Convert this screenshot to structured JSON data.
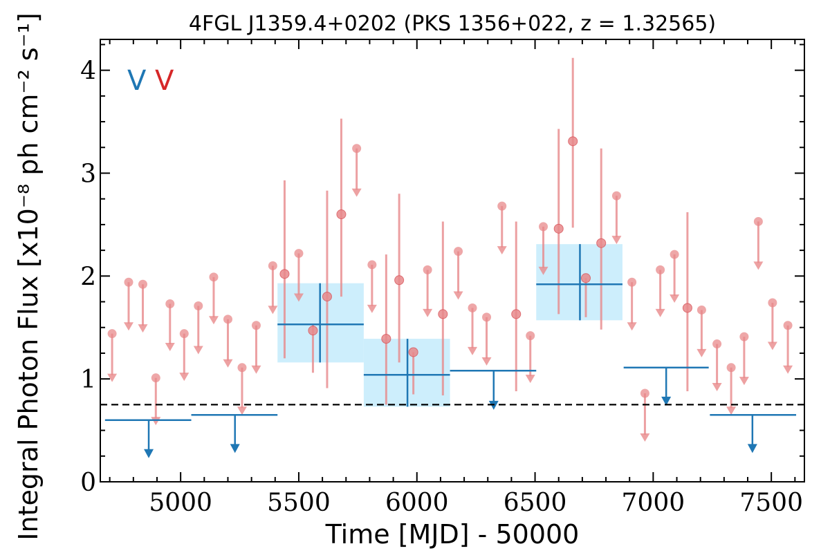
{
  "chart_data": {
    "type": "scatter",
    "title": "4FGL J1359.4+0202 (PKS 1356+022, z = 1.32565)",
    "xlabel": "Time [MJD] - 50000",
    "ylabel": "Integral Photon Flux [x10⁻⁸ ph cm⁻² s⁻¹]",
    "xlim": [
      4660,
      7640
    ],
    "ylim": [
      0,
      4.3
    ],
    "xticks": [
      5000,
      5500,
      6000,
      6500,
      7000,
      7500
    ],
    "yticks": [
      0,
      1,
      2,
      3,
      4
    ],
    "xtick_labels": [
      "5000",
      "5500",
      "6000",
      "6500",
      "7000",
      "7500"
    ],
    "ytick_labels": [
      "0",
      "1",
      "2",
      "3",
      "4"
    ],
    "grid": false,
    "reference_line": {
      "y": 0.75,
      "style": "dashed",
      "color": "#000000"
    },
    "legend": {
      "placement": "top-left",
      "entries": [
        {
          "label": "V",
          "color": "#1f77b4"
        },
        {
          "label": "V",
          "color": "#d62728"
        }
      ]
    },
    "series": [
      {
        "color": "#1f77b4",
        "band_color": "#cdeefc",
        "detections": [
          {
            "x": 5590,
            "x_lo": 5410,
            "x_hi": 5775,
            "y": 1.53,
            "y_lo": 1.16,
            "y_hi": 1.93
          },
          {
            "x": 5960,
            "x_lo": 5775,
            "x_hi": 6140,
            "y": 1.04,
            "y_lo": 0.73,
            "y_hi": 1.39
          },
          {
            "x": 6690,
            "x_lo": 6505,
            "x_hi": 6870,
            "y": 1.92,
            "y_lo": 1.57,
            "y_hi": 2.31
          }
        ],
        "upper_limits": [
          {
            "x": 4865,
            "x_lo": 4680,
            "x_hi": 5045,
            "y": 0.6,
            "arrow_to": 0.23
          },
          {
            "x": 5230,
            "x_lo": 5045,
            "x_hi": 5410,
            "y": 0.65,
            "arrow_to": 0.28
          },
          {
            "x": 6325,
            "x_lo": 6140,
            "x_hi": 6505,
            "y": 1.08,
            "arrow_to": 0.7
          },
          {
            "x": 7055,
            "x_lo": 6875,
            "x_hi": 7235,
            "y": 1.11,
            "arrow_to": 0.74
          },
          {
            "x": 7420,
            "x_lo": 7240,
            "x_hi": 7605,
            "y": 0.65,
            "arrow_to": 0.28
          }
        ]
      },
      {
        "color": "#e8898b",
        "detections": [
          {
            "x": 5440,
            "y": 2.02,
            "y_lo": 1.2,
            "y_hi": 2.93
          },
          {
            "x": 5560,
            "y": 1.47,
            "y_lo": 1.06,
            "y_hi": 1.53
          },
          {
            "x": 5620,
            "y": 1.8,
            "y_lo": 0.91,
            "y_hi": 2.83
          },
          {
            "x": 5680,
            "y": 2.6,
            "y_lo": 1.8,
            "y_hi": 3.53
          },
          {
            "x": 5870,
            "y": 1.39,
            "y_lo": 0.75,
            "y_hi": 2.21
          },
          {
            "x": 5925,
            "y": 1.96,
            "y_lo": 1.16,
            "y_hi": 2.8
          },
          {
            "x": 5985,
            "y": 1.26,
            "y_lo": 0.85,
            "y_hi": 1.26
          },
          {
            "x": 6110,
            "y": 1.63,
            "y_lo": 0.84,
            "y_hi": 2.53
          },
          {
            "x": 6420,
            "y": 1.63,
            "y_lo": 0.88,
            "y_hi": 2.53
          },
          {
            "x": 6600,
            "y": 2.46,
            "y_lo": 1.63,
            "y_hi": 3.43
          },
          {
            "x": 6660,
            "y": 3.31,
            "y_lo": 2.47,
            "y_hi": 4.12
          },
          {
            "x": 6715,
            "y": 1.98,
            "y_lo": 1.6,
            "y_hi": 1.98
          },
          {
            "x": 6780,
            "y": 2.32,
            "y_lo": 1.48,
            "y_hi": 3.24
          },
          {
            "x": 7145,
            "y": 1.69,
            "y_lo": 0.88,
            "y_hi": 2.62
          }
        ],
        "upper_limits": [
          {
            "x": 4710,
            "y": 1.44,
            "arrow_to": 0.97
          },
          {
            "x": 4780,
            "y": 1.94,
            "arrow_to": 1.47
          },
          {
            "x": 4840,
            "y": 1.92,
            "arrow_to": 1.45
          },
          {
            "x": 4895,
            "y": 1.01,
            "arrow_to": 0.55
          },
          {
            "x": 4955,
            "y": 1.73,
            "arrow_to": 1.27
          },
          {
            "x": 5015,
            "y": 1.44,
            "arrow_to": 0.98
          },
          {
            "x": 5075,
            "y": 1.71,
            "arrow_to": 1.24
          },
          {
            "x": 5140,
            "y": 1.99,
            "arrow_to": 1.53
          },
          {
            "x": 5200,
            "y": 1.58,
            "arrow_to": 1.11
          },
          {
            "x": 5260,
            "y": 1.11,
            "arrow_to": 0.65
          },
          {
            "x": 5320,
            "y": 1.52,
            "arrow_to": 1.05
          },
          {
            "x": 5390,
            "y": 2.1,
            "arrow_to": 1.63
          },
          {
            "x": 5500,
            "y": 2.22,
            "arrow_to": 1.75
          },
          {
            "x": 5745,
            "y": 3.24,
            "arrow_to": 2.77
          },
          {
            "x": 5810,
            "y": 2.11,
            "arrow_to": 1.64
          },
          {
            "x": 6045,
            "y": 2.06,
            "arrow_to": 1.6
          },
          {
            "x": 6175,
            "y": 2.24,
            "arrow_to": 1.77
          },
          {
            "x": 6235,
            "y": 1.69,
            "arrow_to": 1.23
          },
          {
            "x": 6295,
            "y": 1.6,
            "arrow_to": 1.13
          },
          {
            "x": 6360,
            "y": 2.68,
            "arrow_to": 2.21
          },
          {
            "x": 6480,
            "y": 1.42,
            "arrow_to": 0.96
          },
          {
            "x": 6535,
            "y": 2.48,
            "arrow_to": 2.01
          },
          {
            "x": 6845,
            "y": 2.78,
            "arrow_to": 2.31
          },
          {
            "x": 6910,
            "y": 1.94,
            "arrow_to": 1.47
          },
          {
            "x": 6965,
            "y": 0.86,
            "arrow_to": 0.39
          },
          {
            "x": 7030,
            "y": 2.06,
            "arrow_to": 1.6
          },
          {
            "x": 7090,
            "y": 2.21,
            "arrow_to": 1.74
          },
          {
            "x": 7205,
            "y": 1.67,
            "arrow_to": 1.21
          },
          {
            "x": 7270,
            "y": 1.34,
            "arrow_to": 0.88
          },
          {
            "x": 7330,
            "y": 1.11,
            "arrow_to": 0.65
          },
          {
            "x": 7385,
            "y": 1.41,
            "arrow_to": 0.94
          },
          {
            "x": 7445,
            "y": 2.53,
            "arrow_to": 2.06
          },
          {
            "x": 7505,
            "y": 1.74,
            "arrow_to": 1.28
          },
          {
            "x": 7570,
            "y": 1.52,
            "arrow_to": 1.05
          }
        ]
      }
    ]
  }
}
